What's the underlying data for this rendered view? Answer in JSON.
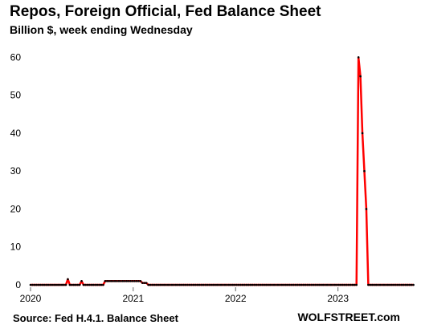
{
  "chart_data": {
    "type": "line",
    "title": "Repos, Foreign Official, Fed Balance Sheet",
    "subtitle": "Billion $, week ending Wednesday",
    "source": "Source: Fed H.4.1. Balance Sheet",
    "brand": "WOLFSTREET.com",
    "xlabel": "",
    "ylabel": "",
    "x_ticks": [
      "2020",
      "2021",
      "2022",
      "2023"
    ],
    "xlim": [
      "2020-01-01",
      "2023-10-01"
    ],
    "y_ticks": [
      0,
      10,
      20,
      30,
      40,
      50,
      60
    ],
    "ylim": [
      0,
      62
    ],
    "grid": false,
    "line_color": "#ff0000",
    "marker_color": "#000000",
    "series": [
      {
        "points": [
          [
            "2020-01-01",
            0
          ],
          [
            "2020-01-08",
            0
          ],
          [
            "2020-01-15",
            0
          ],
          [
            "2020-01-22",
            0
          ],
          [
            "2020-01-29",
            0
          ],
          [
            "2020-02-05",
            0
          ],
          [
            "2020-02-12",
            0
          ],
          [
            "2020-02-19",
            0
          ],
          [
            "2020-02-26",
            0
          ],
          [
            "2020-03-04",
            0
          ],
          [
            "2020-03-11",
            0
          ],
          [
            "2020-03-18",
            0
          ],
          [
            "2020-03-25",
            0
          ],
          [
            "2020-04-01",
            0
          ],
          [
            "2020-04-08",
            0
          ],
          [
            "2020-04-15",
            0
          ],
          [
            "2020-04-22",
            0
          ],
          [
            "2020-04-29",
            0
          ],
          [
            "2020-05-06",
            0
          ],
          [
            "2020-05-13",
            1.5
          ],
          [
            "2020-05-20",
            0
          ],
          [
            "2020-05-27",
            0
          ],
          [
            "2020-06-03",
            0
          ],
          [
            "2020-06-10",
            0
          ],
          [
            "2020-06-17",
            0
          ],
          [
            "2020-06-24",
            0
          ],
          [
            "2020-07-01",
            1
          ],
          [
            "2020-07-08",
            0
          ],
          [
            "2020-07-15",
            0
          ],
          [
            "2020-07-22",
            0
          ],
          [
            "2020-07-29",
            0
          ],
          [
            "2020-08-05",
            0
          ],
          [
            "2020-08-12",
            0
          ],
          [
            "2020-08-19",
            0
          ],
          [
            "2020-08-26",
            0
          ],
          [
            "2020-09-02",
            0
          ],
          [
            "2020-09-09",
            0
          ],
          [
            "2020-09-16",
            0
          ],
          [
            "2020-09-23",
            1
          ],
          [
            "2020-09-30",
            1
          ],
          [
            "2020-10-07",
            1
          ],
          [
            "2020-10-14",
            1
          ],
          [
            "2020-10-21",
            1
          ],
          [
            "2020-10-28",
            1
          ],
          [
            "2020-11-04",
            1
          ],
          [
            "2020-11-11",
            1
          ],
          [
            "2020-11-18",
            1
          ],
          [
            "2020-11-25",
            1
          ],
          [
            "2020-12-02",
            1
          ],
          [
            "2020-12-09",
            1
          ],
          [
            "2020-12-16",
            1
          ],
          [
            "2020-12-23",
            1
          ],
          [
            "2020-12-30",
            1
          ],
          [
            "2021-01-06",
            1
          ],
          [
            "2021-01-13",
            1
          ],
          [
            "2021-01-20",
            1
          ],
          [
            "2021-01-27",
            1
          ],
          [
            "2021-02-03",
            0.5
          ],
          [
            "2021-02-10",
            0.5
          ],
          [
            "2021-02-17",
            0.5
          ],
          [
            "2021-02-24",
            0
          ],
          [
            "2021-03-03",
            0
          ],
          [
            "2021-03-10",
            0
          ],
          [
            "2021-03-17",
            0
          ],
          [
            "2021-03-24",
            0
          ],
          [
            "2021-03-31",
            0
          ],
          [
            "2021-04-07",
            0
          ],
          [
            "2021-04-14",
            0
          ],
          [
            "2021-04-21",
            0
          ],
          [
            "2021-04-28",
            0
          ],
          [
            "2021-05-05",
            0
          ],
          [
            "2021-05-12",
            0
          ],
          [
            "2021-05-19",
            0
          ],
          [
            "2021-05-26",
            0
          ],
          [
            "2021-06-02",
            0
          ],
          [
            "2021-06-09",
            0
          ],
          [
            "2021-06-16",
            0
          ],
          [
            "2021-06-23",
            0
          ],
          [
            "2021-06-30",
            0
          ],
          [
            "2021-07-07",
            0
          ],
          [
            "2021-07-14",
            0
          ],
          [
            "2021-07-21",
            0
          ],
          [
            "2021-07-28",
            0
          ],
          [
            "2021-08-04",
            0
          ],
          [
            "2021-08-11",
            0
          ],
          [
            "2021-08-18",
            0
          ],
          [
            "2021-08-25",
            0
          ],
          [
            "2021-09-01",
            0
          ],
          [
            "2021-09-08",
            0
          ],
          [
            "2021-09-15",
            0
          ],
          [
            "2021-09-22",
            0
          ],
          [
            "2021-09-29",
            0
          ],
          [
            "2021-10-06",
            0
          ],
          [
            "2021-10-13",
            0
          ],
          [
            "2021-10-20",
            0
          ],
          [
            "2021-10-27",
            0
          ],
          [
            "2021-11-03",
            0
          ],
          [
            "2021-11-10",
            0
          ],
          [
            "2021-11-17",
            0
          ],
          [
            "2021-11-24",
            0
          ],
          [
            "2021-12-01",
            0
          ],
          [
            "2021-12-08",
            0
          ],
          [
            "2021-12-15",
            0
          ],
          [
            "2021-12-22",
            0
          ],
          [
            "2021-12-29",
            0
          ],
          [
            "2022-01-05",
            0
          ],
          [
            "2022-01-12",
            0
          ],
          [
            "2022-01-19",
            0
          ],
          [
            "2022-01-26",
            0
          ],
          [
            "2022-02-02",
            0
          ],
          [
            "2022-02-09",
            0
          ],
          [
            "2022-02-16",
            0
          ],
          [
            "2022-02-23",
            0
          ],
          [
            "2022-03-02",
            0
          ],
          [
            "2022-03-09",
            0
          ],
          [
            "2022-03-16",
            0
          ],
          [
            "2022-03-23",
            0
          ],
          [
            "2022-03-30",
            0
          ],
          [
            "2022-04-06",
            0
          ],
          [
            "2022-04-13",
            0
          ],
          [
            "2022-04-20",
            0
          ],
          [
            "2022-04-27",
            0
          ],
          [
            "2022-05-04",
            0
          ],
          [
            "2022-05-11",
            0
          ],
          [
            "2022-05-18",
            0
          ],
          [
            "2022-05-25",
            0
          ],
          [
            "2022-06-01",
            0
          ],
          [
            "2022-06-08",
            0
          ],
          [
            "2022-06-15",
            0
          ],
          [
            "2022-06-22",
            0
          ],
          [
            "2022-06-29",
            0
          ],
          [
            "2022-07-06",
            0
          ],
          [
            "2022-07-13",
            0
          ],
          [
            "2022-07-20",
            0
          ],
          [
            "2022-07-27",
            0
          ],
          [
            "2022-08-03",
            0
          ],
          [
            "2022-08-10",
            0
          ],
          [
            "2022-08-17",
            0
          ],
          [
            "2022-08-24",
            0
          ],
          [
            "2022-08-31",
            0
          ],
          [
            "2022-09-07",
            0
          ],
          [
            "2022-09-14",
            0
          ],
          [
            "2022-09-21",
            0
          ],
          [
            "2022-09-28",
            0
          ],
          [
            "2022-10-05",
            0
          ],
          [
            "2022-10-12",
            0
          ],
          [
            "2022-10-19",
            0
          ],
          [
            "2022-10-26",
            0
          ],
          [
            "2022-11-02",
            0
          ],
          [
            "2022-11-09",
            0
          ],
          [
            "2022-11-16",
            0
          ],
          [
            "2022-11-23",
            0
          ],
          [
            "2022-11-30",
            0
          ],
          [
            "2022-12-07",
            0
          ],
          [
            "2022-12-14",
            0
          ],
          [
            "2022-12-21",
            0
          ],
          [
            "2022-12-28",
            0
          ],
          [
            "2023-01-04",
            0
          ],
          [
            "2023-01-11",
            0
          ],
          [
            "2023-01-18",
            0
          ],
          [
            "2023-01-25",
            0
          ],
          [
            "2023-02-01",
            0
          ],
          [
            "2023-02-08",
            0
          ],
          [
            "2023-02-15",
            0
          ],
          [
            "2023-02-22",
            0
          ],
          [
            "2023-03-01",
            0
          ],
          [
            "2023-03-08",
            0
          ],
          [
            "2023-03-15",
            60
          ],
          [
            "2023-03-22",
            55
          ],
          [
            "2023-03-29",
            40
          ],
          [
            "2023-04-05",
            30
          ],
          [
            "2023-04-12",
            20
          ],
          [
            "2023-04-19",
            0
          ],
          [
            "2023-04-26",
            0
          ],
          [
            "2023-05-03",
            0
          ],
          [
            "2023-05-10",
            0
          ],
          [
            "2023-05-17",
            0
          ],
          [
            "2023-05-24",
            0
          ],
          [
            "2023-05-31",
            0
          ],
          [
            "2023-06-07",
            0
          ],
          [
            "2023-06-14",
            0
          ],
          [
            "2023-06-21",
            0
          ],
          [
            "2023-06-28",
            0
          ],
          [
            "2023-07-05",
            0
          ],
          [
            "2023-07-12",
            0
          ],
          [
            "2023-07-19",
            0
          ],
          [
            "2023-07-26",
            0
          ],
          [
            "2023-08-02",
            0
          ],
          [
            "2023-08-09",
            0
          ],
          [
            "2023-08-16",
            0
          ],
          [
            "2023-08-23",
            0
          ],
          [
            "2023-08-30",
            0
          ],
          [
            "2023-09-06",
            0
          ],
          [
            "2023-09-13",
            0
          ],
          [
            "2023-09-20",
            0
          ],
          [
            "2023-09-27",
            0
          ]
        ]
      }
    ]
  }
}
